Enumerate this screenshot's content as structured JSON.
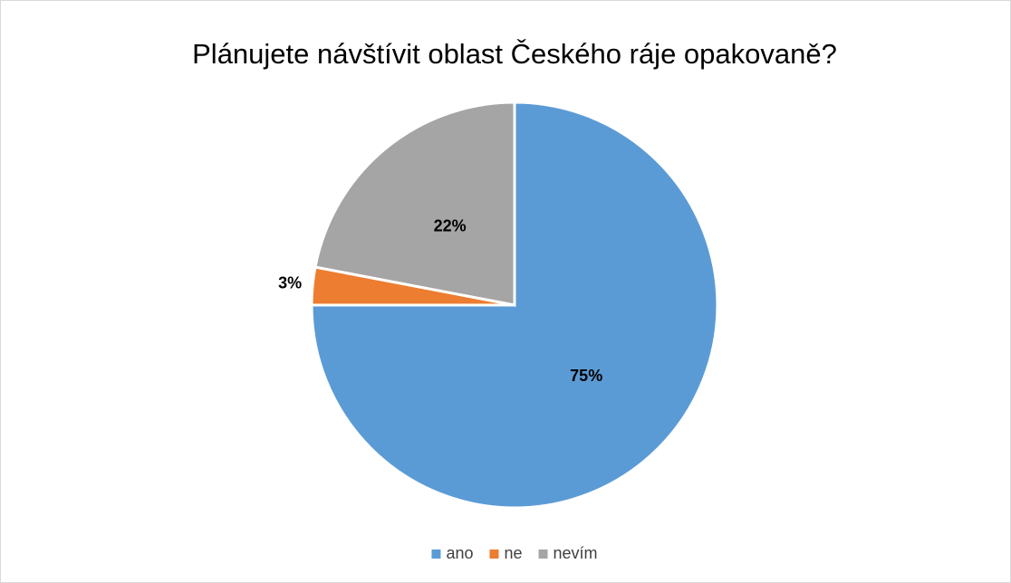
{
  "chart_data": {
    "type": "pie",
    "title": "Plánujete návštívit oblast Českého ráje opakovaně?",
    "categories": [
      "ano",
      "ne",
      "nevím"
    ],
    "values": [
      75,
      3,
      22
    ],
    "value_labels": [
      "75%",
      "3%",
      "22%"
    ],
    "colors": [
      "#5b9bd5",
      "#ed7d31",
      "#a5a5a5"
    ],
    "legend": "bottom"
  }
}
